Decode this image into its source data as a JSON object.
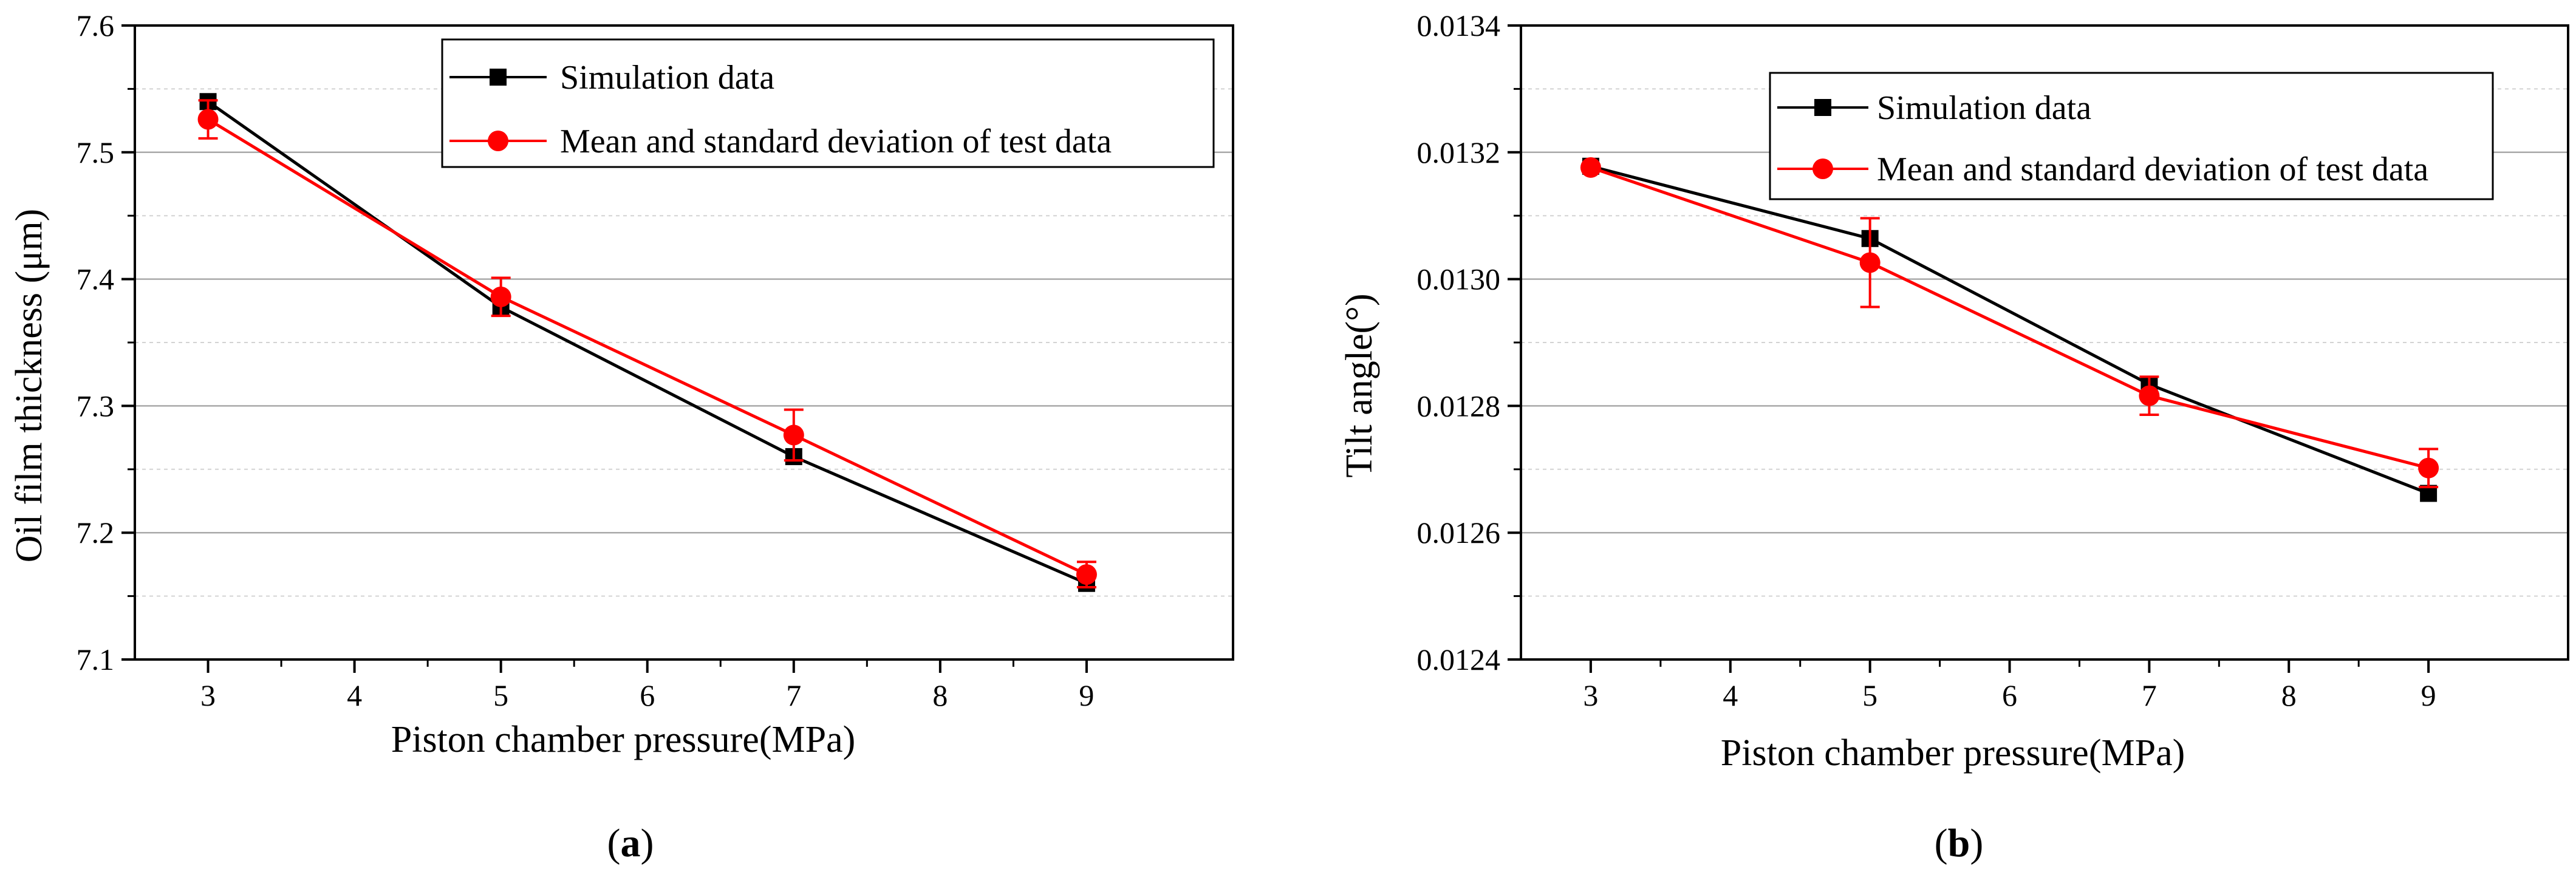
{
  "figure": {
    "colors": {
      "simulation": "#000000",
      "test": "#ff0000",
      "grid_major": "#a9a9a9",
      "grid_minor": "#d3d3d3",
      "axis": "#000000",
      "background": "#ffffff"
    },
    "panels": [
      {
        "panel_label": {
          "open": "(",
          "letter": "a",
          "close": ")"
        },
        "chart_data": {
          "type": "line",
          "title": "",
          "xlabel": "Piston chamber pressure(MPa)",
          "ylabel": "Oil film thickness (μm)",
          "xlim": [
            2.5,
            10
          ],
          "ylim": [
            7.1,
            7.6
          ],
          "x_ticks": [
            3,
            4,
            5,
            6,
            7,
            8,
            9
          ],
          "x_tick_labels": [
            "3",
            "4",
            "5",
            "6",
            "7",
            "8",
            "9"
          ],
          "y_ticks": [
            7.1,
            7.2,
            7.3,
            7.4,
            7.5,
            7.6
          ],
          "y_tick_labels": [
            "7.1",
            "7.2",
            "7.3",
            "7.4",
            "7.5",
            "7.6"
          ],
          "y_minor_ticks": [
            7.15,
            7.25,
            7.35,
            7.45,
            7.55
          ],
          "grid": true,
          "legend_position": "top-right",
          "series": [
            {
              "name": "Simulation data",
              "marker": "square",
              "color": "#000000",
              "x": [
                3,
                5,
                7,
                9
              ],
              "y": [
                7.54,
                7.378,
                7.26,
                7.16
              ]
            },
            {
              "name": "Mean and standard deviation of test data",
              "marker": "circle",
              "color": "#ff0000",
              "x": [
                3,
                5,
                7,
                9
              ],
              "y": [
                7.526,
                7.386,
                7.277,
                7.167
              ],
              "error": [
                0.015,
                0.015,
                0.02,
                0.01
              ]
            }
          ]
        }
      },
      {
        "panel_label": {
          "open": "(",
          "letter": "b",
          "close": ")"
        },
        "chart_data": {
          "type": "line",
          "title": "",
          "xlabel": "Piston chamber pressure(MPa)",
          "ylabel": "Tilt angle(°)",
          "xlim": [
            2.5,
            10
          ],
          "ylim": [
            0.0124,
            0.0134
          ],
          "x_ticks": [
            3,
            4,
            5,
            6,
            7,
            8,
            9
          ],
          "x_tick_labels": [
            "3",
            "4",
            "5",
            "6",
            "7",
            "8",
            "9"
          ],
          "y_ticks": [
            0.0124,
            0.0126,
            0.0128,
            0.013,
            0.0132,
            0.0134
          ],
          "y_tick_labels": [
            "0.0124",
            "0.0126",
            "0.0128",
            "0.0130",
            "0.0132",
            "0.0134"
          ],
          "y_minor_ticks": [
            0.0125,
            0.0127,
            0.0129,
            0.0131,
            0.0133
          ],
          "grid": true,
          "legend_position": "top-right",
          "series": [
            {
              "name": "Simulation data",
              "marker": "square",
              "color": "#000000",
              "x": [
                3,
                5,
                7,
                9
              ],
              "y": [
                0.013178,
                0.013064,
                0.012834,
                0.012662
              ]
            },
            {
              "name": "Mean and standard deviation of test data",
              "marker": "circle",
              "color": "#ff0000",
              "x": [
                3,
                5,
                7,
                9
              ],
              "y": [
                0.013176,
                0.013026,
                0.012816,
                0.012702
              ],
              "error": [
                2e-06,
                7e-05,
                3e-05,
                3e-05
              ]
            }
          ]
        }
      }
    ]
  }
}
